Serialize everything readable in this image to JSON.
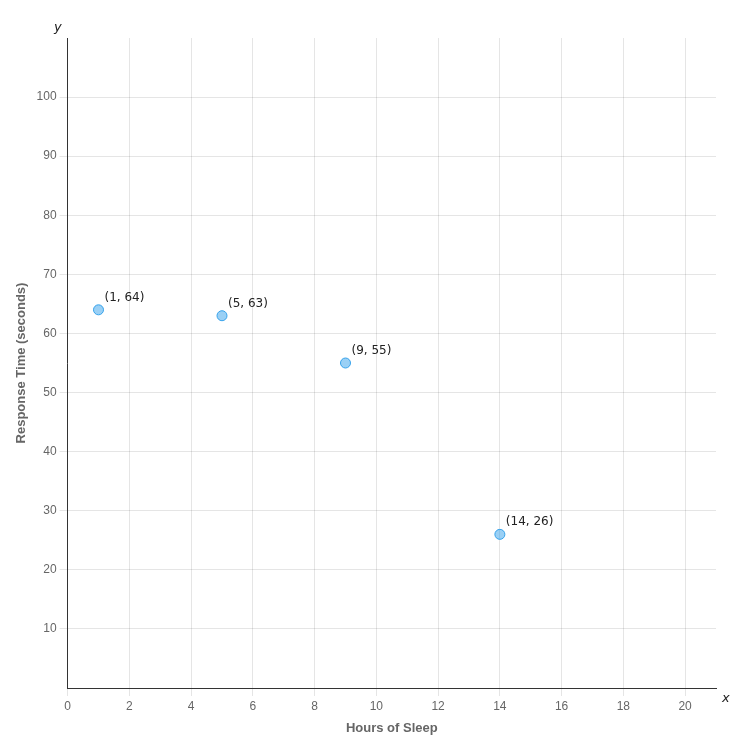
{
  "chart_data": {
    "type": "scatter",
    "x": [
      1,
      5,
      9,
      14
    ],
    "values": [
      64,
      63,
      55,
      26
    ],
    "data_labels": true,
    "value_labels": [
      "(1, 64)",
      "(5, 63)",
      "(9, 55)",
      "(14, 26)"
    ],
    "x_label": "Hours of Sleep",
    "y_label": "Response Time (seconds)",
    "annotations": [
      {
        "text": "x"
      },
      {
        "text": "y"
      }
    ],
    "xlim": [
      0,
      21
    ],
    "ylim": [
      0,
      110
    ],
    "xticks": [
      0,
      2,
      4,
      6,
      8,
      10,
      12,
      14,
      16,
      18,
      20
    ],
    "yticks": [
      10,
      20,
      30,
      40,
      50,
      60,
      70,
      80,
      90,
      100
    ],
    "grid": true
  }
}
